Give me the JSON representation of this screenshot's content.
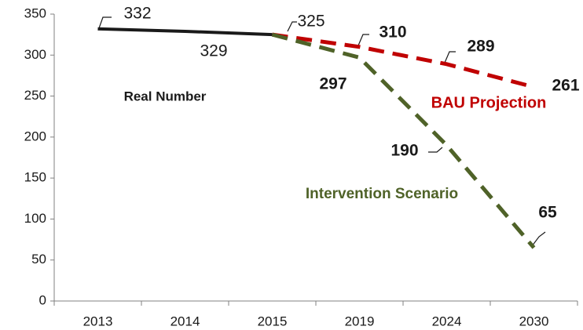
{
  "chart_data": {
    "type": "line",
    "categories": [
      "2013",
      "2014",
      "2015",
      "2019",
      "2024",
      "2030"
    ],
    "series": [
      {
        "name": "Real Number",
        "color": "#1a1a1a",
        "values": [
          332,
          329,
          325,
          null,
          null,
          null
        ]
      },
      {
        "name": "BAU Projection",
        "color": "#c00000",
        "values": [
          null,
          null,
          325,
          310,
          289,
          261
        ]
      },
      {
        "name": "Intervention Scenario",
        "color": "#4f6228",
        "values": [
          null,
          null,
          325,
          297,
          190,
          65
        ]
      }
    ],
    "ylim": [
      0,
      350
    ],
    "yticks": [
      0,
      50,
      100,
      150,
      200,
      250,
      300,
      350
    ]
  }
}
